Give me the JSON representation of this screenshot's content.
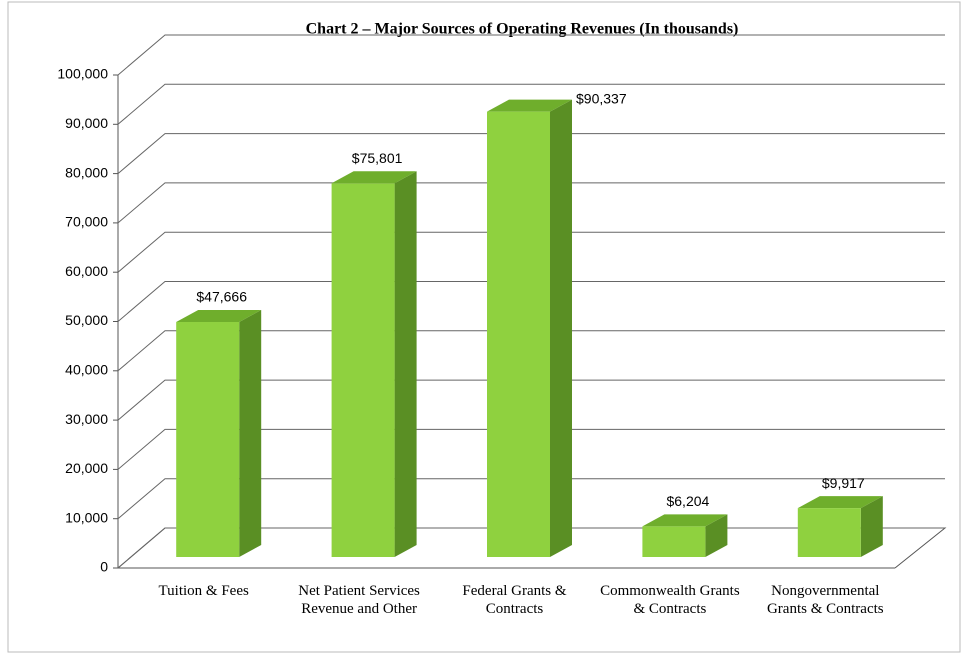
{
  "chart_data": {
    "type": "bar",
    "title": "Chart 2 – Major Sources of Operating Revenues (In thousands)",
    "categories": [
      "Tuition & Fees",
      "Net Patient Services Revenue and Other",
      "Federal Grants & Contracts",
      "Commonwealth Grants & Contracts",
      "Nongovernmental Grants & Contracts"
    ],
    "values": [
      47666,
      75801,
      90337,
      6204,
      9917
    ],
    "value_labels": [
      "$47,666",
      "$75,801",
      "$90,337",
      "$6,204",
      "$9,917"
    ],
    "color": "#8fd13f",
    "ylim": [
      0,
      100000
    ],
    "yticks": [
      0,
      {
        "value": 10000,
        "label": "10,000"
      },
      {
        "value": 20000,
        "label": "20,000"
      },
      {
        "value": 30000,
        "label": "30,000"
      },
      {
        "value": 40000,
        "label": "40,000"
      },
      {
        "value": 50000,
        "label": "50,000"
      },
      {
        "value": 60000,
        "label": "60,000"
      },
      {
        "value": 70000,
        "label": "70,000"
      },
      {
        "value": 80000,
        "label": "80,000"
      },
      {
        "value": 90000,
        "label": "90,000"
      },
      {
        "value": 100000,
        "label": "100,000"
      }
    ],
    "grid": true
  }
}
